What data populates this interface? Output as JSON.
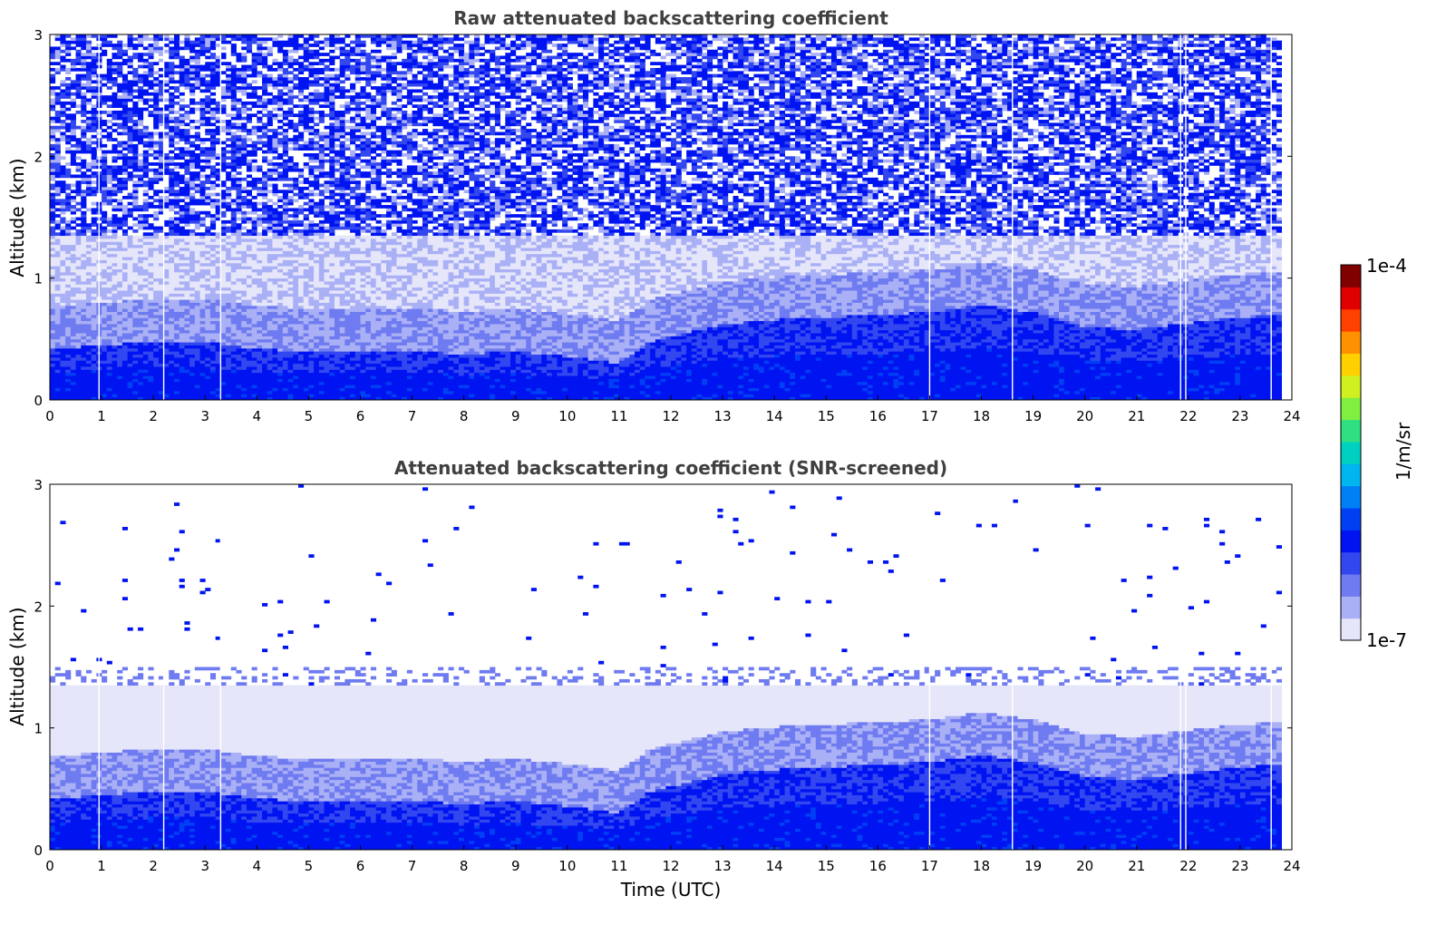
{
  "chart_data": [
    {
      "type": "heatmap",
      "title": "Raw attenuated backscattering coefficient",
      "xlabel": "",
      "ylabel": "Altitude (km)",
      "xlim": [
        0,
        24
      ],
      "ylim": [
        0,
        3
      ],
      "xticks": [
        0,
        1,
        2,
        3,
        4,
        5,
        6,
        7,
        8,
        9,
        10,
        11,
        12,
        13,
        14,
        15,
        16,
        17,
        18,
        19,
        20,
        21,
        22,
        23,
        24
      ],
      "yticks": [
        0,
        1,
        2,
        3
      ],
      "data_end_hour": 23.8,
      "gap_hours": [
        0.95,
        2.2,
        3.3,
        17.0,
        18.6,
        21.85,
        21.95,
        23.6
      ],
      "boundary_layer_top_km": [
        [
          0,
          0.42
        ],
        [
          1,
          0.45
        ],
        [
          2,
          0.48
        ],
        [
          3,
          0.48
        ],
        [
          4,
          0.42
        ],
        [
          5,
          0.4
        ],
        [
          6,
          0.4
        ],
        [
          7,
          0.4
        ],
        [
          8,
          0.38
        ],
        [
          9,
          0.4
        ],
        [
          10,
          0.36
        ],
        [
          11,
          0.3
        ],
        [
          11.6,
          0.48
        ],
        [
          12,
          0.52
        ],
        [
          13,
          0.62
        ],
        [
          14,
          0.66
        ],
        [
          15,
          0.68
        ],
        [
          16,
          0.7
        ],
        [
          17,
          0.72
        ],
        [
          18,
          0.78
        ],
        [
          19,
          0.72
        ],
        [
          20,
          0.6
        ],
        [
          21,
          0.58
        ],
        [
          22,
          0.63
        ],
        [
          23,
          0.68
        ],
        [
          23.8,
          0.7
        ]
      ],
      "noise": "high"
    },
    {
      "type": "heatmap",
      "title": "Attenuated backscattering coefficient (SNR-screened)",
      "xlabel": "Time (UTC)",
      "ylabel": "Altitude (km)",
      "xlim": [
        0,
        24
      ],
      "ylim": [
        0,
        3
      ],
      "xticks": [
        0,
        1,
        2,
        3,
        4,
        5,
        6,
        7,
        8,
        9,
        10,
        11,
        12,
        13,
        14,
        15,
        16,
        17,
        18,
        19,
        20,
        21,
        22,
        23,
        24
      ],
      "yticks": [
        0,
        1,
        2,
        3
      ],
      "data_end_hour": 23.8,
      "gap_hours": [
        0.95,
        2.2,
        3.3,
        17.0,
        18.6,
        21.85,
        21.95,
        23.6
      ],
      "boundary_layer_top_km": [
        [
          0,
          0.42
        ],
        [
          1,
          0.45
        ],
        [
          2,
          0.48
        ],
        [
          3,
          0.48
        ],
        [
          4,
          0.42
        ],
        [
          5,
          0.4
        ],
        [
          6,
          0.4
        ],
        [
          7,
          0.4
        ],
        [
          8,
          0.38
        ],
        [
          9,
          0.4
        ],
        [
          10,
          0.36
        ],
        [
          11,
          0.3
        ],
        [
          11.6,
          0.48
        ],
        [
          12,
          0.52
        ],
        [
          13,
          0.62
        ],
        [
          14,
          0.66
        ],
        [
          15,
          0.68
        ],
        [
          16,
          0.7
        ],
        [
          17,
          0.72
        ],
        [
          18,
          0.78
        ],
        [
          19,
          0.72
        ],
        [
          20,
          0.6
        ],
        [
          21,
          0.58
        ],
        [
          22,
          0.63
        ],
        [
          23,
          0.68
        ],
        [
          23.8,
          0.7
        ]
      ],
      "noise": "screened"
    }
  ],
  "colorbar": {
    "label": "1/m/sr",
    "max_label": "1e-4",
    "min_label": "1e-7",
    "scale": "log",
    "range": [
      1e-07,
      0.0001
    ],
    "colors": [
      "#e6e6fa",
      "#aab0f5",
      "#6f7bf0",
      "#3347f0",
      "#0014f2",
      "#0040f5",
      "#0080f5",
      "#00b5f0",
      "#00d0c0",
      "#30e080",
      "#80f040",
      "#d0f020",
      "#ffd000",
      "#ff9000",
      "#ff4000",
      "#e00000",
      "#800000"
    ]
  }
}
